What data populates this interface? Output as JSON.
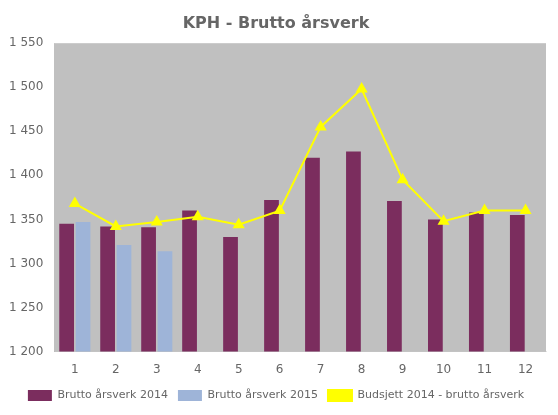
{
  "chart_data": {
    "type": "bar",
    "title": "KPH - Brutto årsverk",
    "categories": [
      "1",
      "2",
      "3",
      "4",
      "5",
      "6",
      "7",
      "8",
      "9",
      "10",
      "11",
      "12"
    ],
    "series": [
      {
        "name": "Brutto årsverk 2014",
        "type": "bar",
        "color": "#7B2D5E",
        "values": [
          1345,
          1342,
          1341,
          1360,
          1330,
          1372,
          1420,
          1427,
          1371,
          1350,
          1358,
          1355
        ]
      },
      {
        "name": "Brutto årsverk 2015",
        "type": "bar",
        "color": "#9EB4D8",
        "values": [
          1347,
          1321,
          1314,
          null,
          null,
          null,
          null,
          null,
          null,
          null,
          null,
          null
        ]
      },
      {
        "name": "Budsjett 2014 - brutto årsverk",
        "type": "line",
        "color": "#FFFF00",
        "marker": "triangle",
        "values": [
          1368,
          1342,
          1347,
          1353,
          1344,
          1360,
          1455,
          1498,
          1395,
          1348,
          1360,
          1360
        ]
      }
    ],
    "ylim": [
      1200,
      1550
    ],
    "yticks": [
      {
        "value": 1200,
        "label": "1 200"
      },
      {
        "value": 1250,
        "label": "1 250"
      },
      {
        "value": 1300,
        "label": "1 300"
      },
      {
        "value": 1350,
        "label": "1 350"
      },
      {
        "value": 1400,
        "label": "1 400"
      },
      {
        "value": 1450,
        "label": "1 450"
      },
      {
        "value": 1500,
        "label": "1 500"
      },
      {
        "value": 1550,
        "label": "1 550"
      }
    ],
    "grid": false,
    "legend": "bottom"
  }
}
